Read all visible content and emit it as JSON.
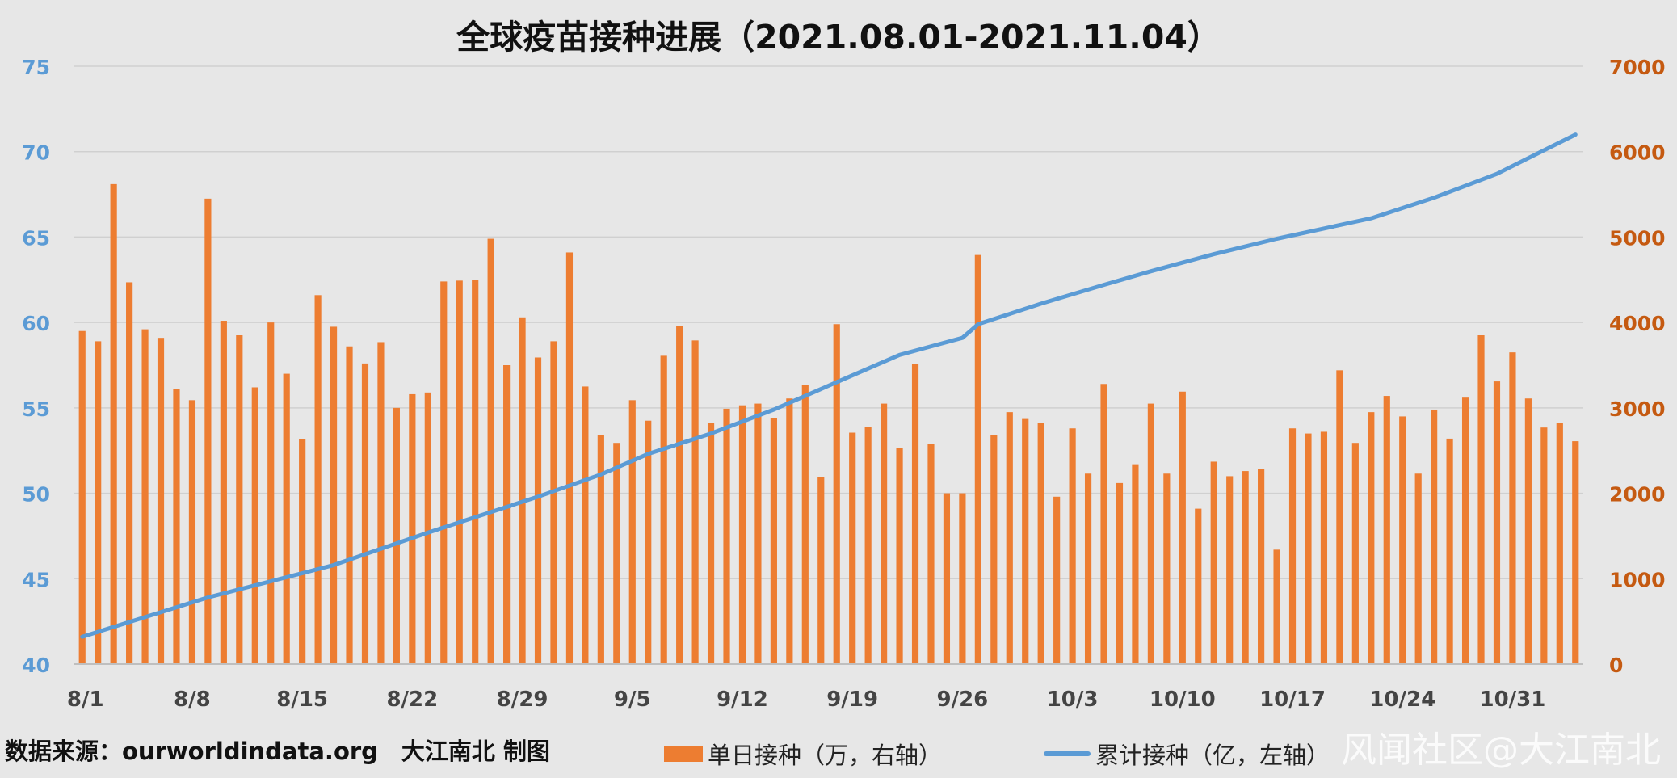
{
  "chart_data": {
    "type": "bar+line",
    "title": "全球疫苗接种进展（2021.08.01-2021.11.04）",
    "x_tick_labels": [
      "8/1",
      "8/8",
      "8/15",
      "8/22",
      "8/29",
      "9/5",
      "9/12",
      "9/19",
      "9/26",
      "10/3",
      "10/10",
      "10/17",
      "10/24",
      "10/31"
    ],
    "left_axis": {
      "ylim": [
        40,
        75
      ],
      "ticks": [
        40,
        45,
        50,
        55,
        60,
        65,
        70,
        75
      ],
      "color": "#5b9bd5"
    },
    "right_axis": {
      "ylim": [
        0,
        7000
      ],
      "ticks": [
        0,
        1000,
        2000,
        3000,
        4000,
        5000,
        6000,
        7000
      ],
      "color": "#c55a11"
    },
    "grid": true,
    "series": [
      {
        "name": "单日接种（万，右轴）",
        "type": "bar",
        "axis": "right",
        "color": "#ed7d31",
        "values": [
          3900,
          3780,
          5620,
          4470,
          3920,
          3820,
          3220,
          3090,
          5450,
          4020,
          3850,
          3240,
          4000,
          3400,
          2630,
          4320,
          3950,
          3720,
          3520,
          3770,
          3000,
          3160,
          3180,
          4480,
          4490,
          4500,
          4980,
          3500,
          4060,
          3590,
          3780,
          4820,
          3250,
          2680,
          2590,
          3090,
          2850,
          3610,
          3960,
          3790,
          2820,
          2990,
          3030,
          3050,
          2880,
          3110,
          3270,
          2190,
          3980,
          2710,
          2780,
          3050,
          2530,
          3510,
          2580,
          2000,
          2000,
          4790,
          2680,
          2950,
          2870,
          2820,
          1960,
          2760,
          2230,
          3280,
          2120,
          2340,
          3050,
          2230,
          3190,
          1820,
          2370,
          2200,
          2260,
          2280,
          1340,
          2760,
          2700,
          2720,
          3440,
          2590,
          2950,
          3140,
          2900,
          2230,
          2980,
          2640,
          3120,
          3850,
          3310,
          3650,
          3110,
          2770,
          2820,
          2610
        ]
      },
      {
        "name": "累计接种（亿，左轴）",
        "type": "line",
        "axis": "left",
        "color": "#5b9bd5",
        "points": [
          [
            0,
            41.6
          ],
          [
            8,
            43.9
          ],
          [
            16,
            45.8
          ],
          [
            22,
            47.7
          ],
          [
            29,
            49.8
          ],
          [
            33,
            51.1
          ],
          [
            36,
            52.3
          ],
          [
            40,
            53.5
          ],
          [
            44,
            54.9
          ],
          [
            48,
            56.5
          ],
          [
            52,
            58.1
          ],
          [
            56,
            59.1
          ],
          [
            57,
            59.9
          ],
          [
            61,
            61.1
          ],
          [
            65,
            62.2
          ],
          [
            68,
            63.0
          ],
          [
            72,
            64.0
          ],
          [
            76,
            64.9
          ],
          [
            82,
            66.1
          ],
          [
            86,
            67.3
          ],
          [
            90,
            68.7
          ],
          [
            95,
            71.0
          ]
        ]
      }
    ]
  },
  "footer": {
    "source": "数据来源：ourworldindata.org　大江南北 制图"
  },
  "legend": {
    "bar_label": "单日接种（万，右轴）",
    "line_label": "累计接种（亿，左轴）"
  },
  "watermark": "风闻社区@大江南北"
}
